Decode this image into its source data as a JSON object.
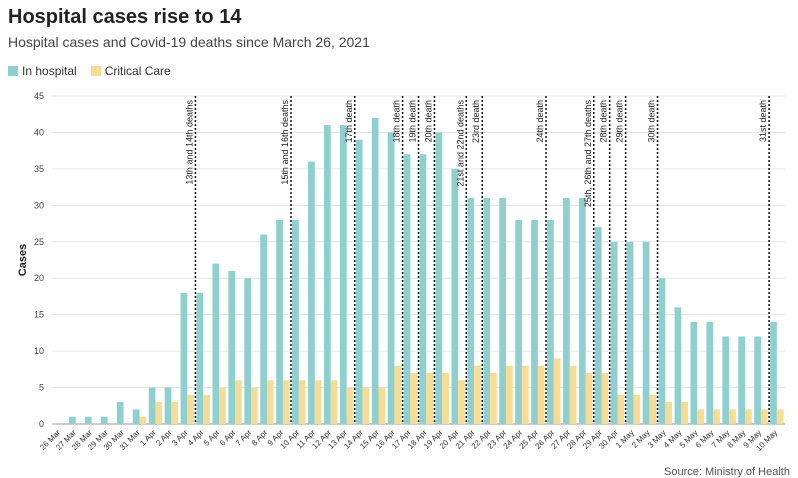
{
  "chart_data": {
    "type": "bar",
    "title": "Hospital cases rise to 14",
    "subtitle": "Hospital cases and Covid-19 deaths since March 26, 2021",
    "ylabel": "Cases",
    "xlabel": "",
    "ylim": [
      0,
      45
    ],
    "yticks": [
      0,
      5,
      10,
      15,
      20,
      25,
      30,
      35,
      40,
      45
    ],
    "grid": true,
    "legend_position": "top-left",
    "source": "Source: Ministry of Health",
    "categories": [
      "26 Mar",
      "27 Mar",
      "28 Mar",
      "29 Mar",
      "30 Mar",
      "31 Mar",
      "1 Apr",
      "2 Apr",
      "3 Apr",
      "4 Apr",
      "5 Apr",
      "6 Apr",
      "7 Apr",
      "8 Apr",
      "9 Apr",
      "10 Apr",
      "11 Apr",
      "12 Apr",
      "13 Apr",
      "14 Apr",
      "15 Apr",
      "16 Apr",
      "17 Apr",
      "18 Apr",
      "19 Apr",
      "20 Apr",
      "21 Apr",
      "22 Apr",
      "23 Apr",
      "24 Apr",
      "25 Apr",
      "26 Apr",
      "27 Apr",
      "28 Apr",
      "29 Apr",
      "30 Apr",
      "1 May",
      "2 May",
      "3 May",
      "4 May",
      "5 May",
      "6 May",
      "7 May",
      "8 May",
      "9 May",
      "10 May"
    ],
    "series": [
      {
        "name": "In hospital",
        "color": "#8ecfd0",
        "values": [
          0,
          1,
          1,
          1,
          3,
          2,
          5,
          5,
          18,
          18,
          22,
          21,
          20,
          26,
          28,
          28,
          36,
          41,
          41,
          39,
          42,
          40,
          37,
          37,
          40,
          35,
          31,
          31,
          31,
          28,
          28,
          28,
          31,
          31,
          27,
          25,
          25,
          25,
          20,
          16,
          14,
          14,
          12,
          12,
          12,
          14
        ]
      },
      {
        "name": "Critical Care",
        "color": "#f6dc94",
        "values": [
          0,
          0,
          0,
          0,
          0,
          1,
          3,
          3,
          4,
          4,
          5,
          6,
          5,
          6,
          6,
          6,
          6,
          6,
          5,
          5,
          5,
          8,
          7,
          7,
          7,
          6,
          8,
          7,
          8,
          8,
          8,
          9,
          8,
          7,
          7,
          4,
          4,
          4,
          3,
          3,
          2,
          2,
          2,
          2,
          2,
          2
        ]
      }
    ],
    "annotations": [
      {
        "after_category": "3 Apr",
        "label": "13th and 14th deaths"
      },
      {
        "after_category": "9 Apr",
        "label": "15th and 16th deaths"
      },
      {
        "after_category": "13 Apr",
        "label": "17th death"
      },
      {
        "after_category": "16 Apr",
        "label": "18th death"
      },
      {
        "after_category": "17 Apr",
        "label": "19th death"
      },
      {
        "after_category": "18 Apr",
        "label": "20th death"
      },
      {
        "after_category": "20 Apr",
        "label": "21st and 22nd deaths"
      },
      {
        "after_category": "21 Apr",
        "label": "23rd death"
      },
      {
        "after_category": "25 Apr",
        "label": "24th death"
      },
      {
        "after_category": "28 Apr",
        "label": "25th, 26th and 27th deaths"
      },
      {
        "after_category": "29 Apr",
        "label": "28th death"
      },
      {
        "after_category": "30 Apr",
        "label": "29th death"
      },
      {
        "after_category": "2 May",
        "label": "30th death"
      },
      {
        "after_category": "9 May",
        "label": "31st death"
      }
    ]
  }
}
